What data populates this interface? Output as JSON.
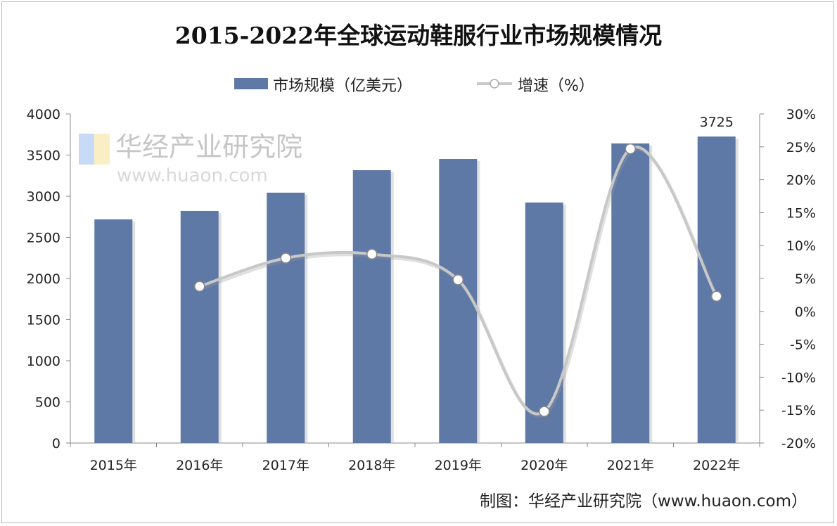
{
  "chart_data": {
    "type": "bar+line",
    "title": "2015-2022年全球运动鞋服行业市场规模情况",
    "categories": [
      "2015年",
      "2016年",
      "2017年",
      "2018年",
      "2019年",
      "2020年",
      "2021年",
      "2022年"
    ],
    "series": [
      {
        "name": "市场规模（亿美元）",
        "type": "bar",
        "axis": "left",
        "color": "#5f79a6",
        "values": [
          2718,
          2821,
          3043,
          3316,
          3453,
          2923,
          3641,
          3725
        ]
      },
      {
        "name": "增速（%）",
        "type": "line",
        "axis": "right",
        "color": "#c8c8c8",
        "values": [
          null,
          3.8,
          8.1,
          8.7,
          4.8,
          -15.2,
          24.7,
          2.3
        ]
      }
    ],
    "data_labels": [
      {
        "category": "2022年",
        "text": "3725"
      }
    ],
    "left_axis": {
      "ylim": [
        0,
        4000
      ],
      "ticks": [
        "0",
        "500",
        "1000",
        "1500",
        "2000",
        "2500",
        "3000",
        "3500",
        "4000"
      ]
    },
    "right_axis": {
      "ylim": [
        -20,
        30
      ],
      "ticks": [
        "-20%",
        "-15%",
        "-10%",
        "-5%",
        "0%",
        "5%",
        "10%",
        "15%",
        "20%",
        "25%",
        "30%"
      ]
    },
    "legend": "top-center",
    "grid": false,
    "source": "制图：华经产业研究院（www.huaon.com）",
    "watermark": [
      "华经产业研究院",
      "www.huaon.com"
    ]
  }
}
